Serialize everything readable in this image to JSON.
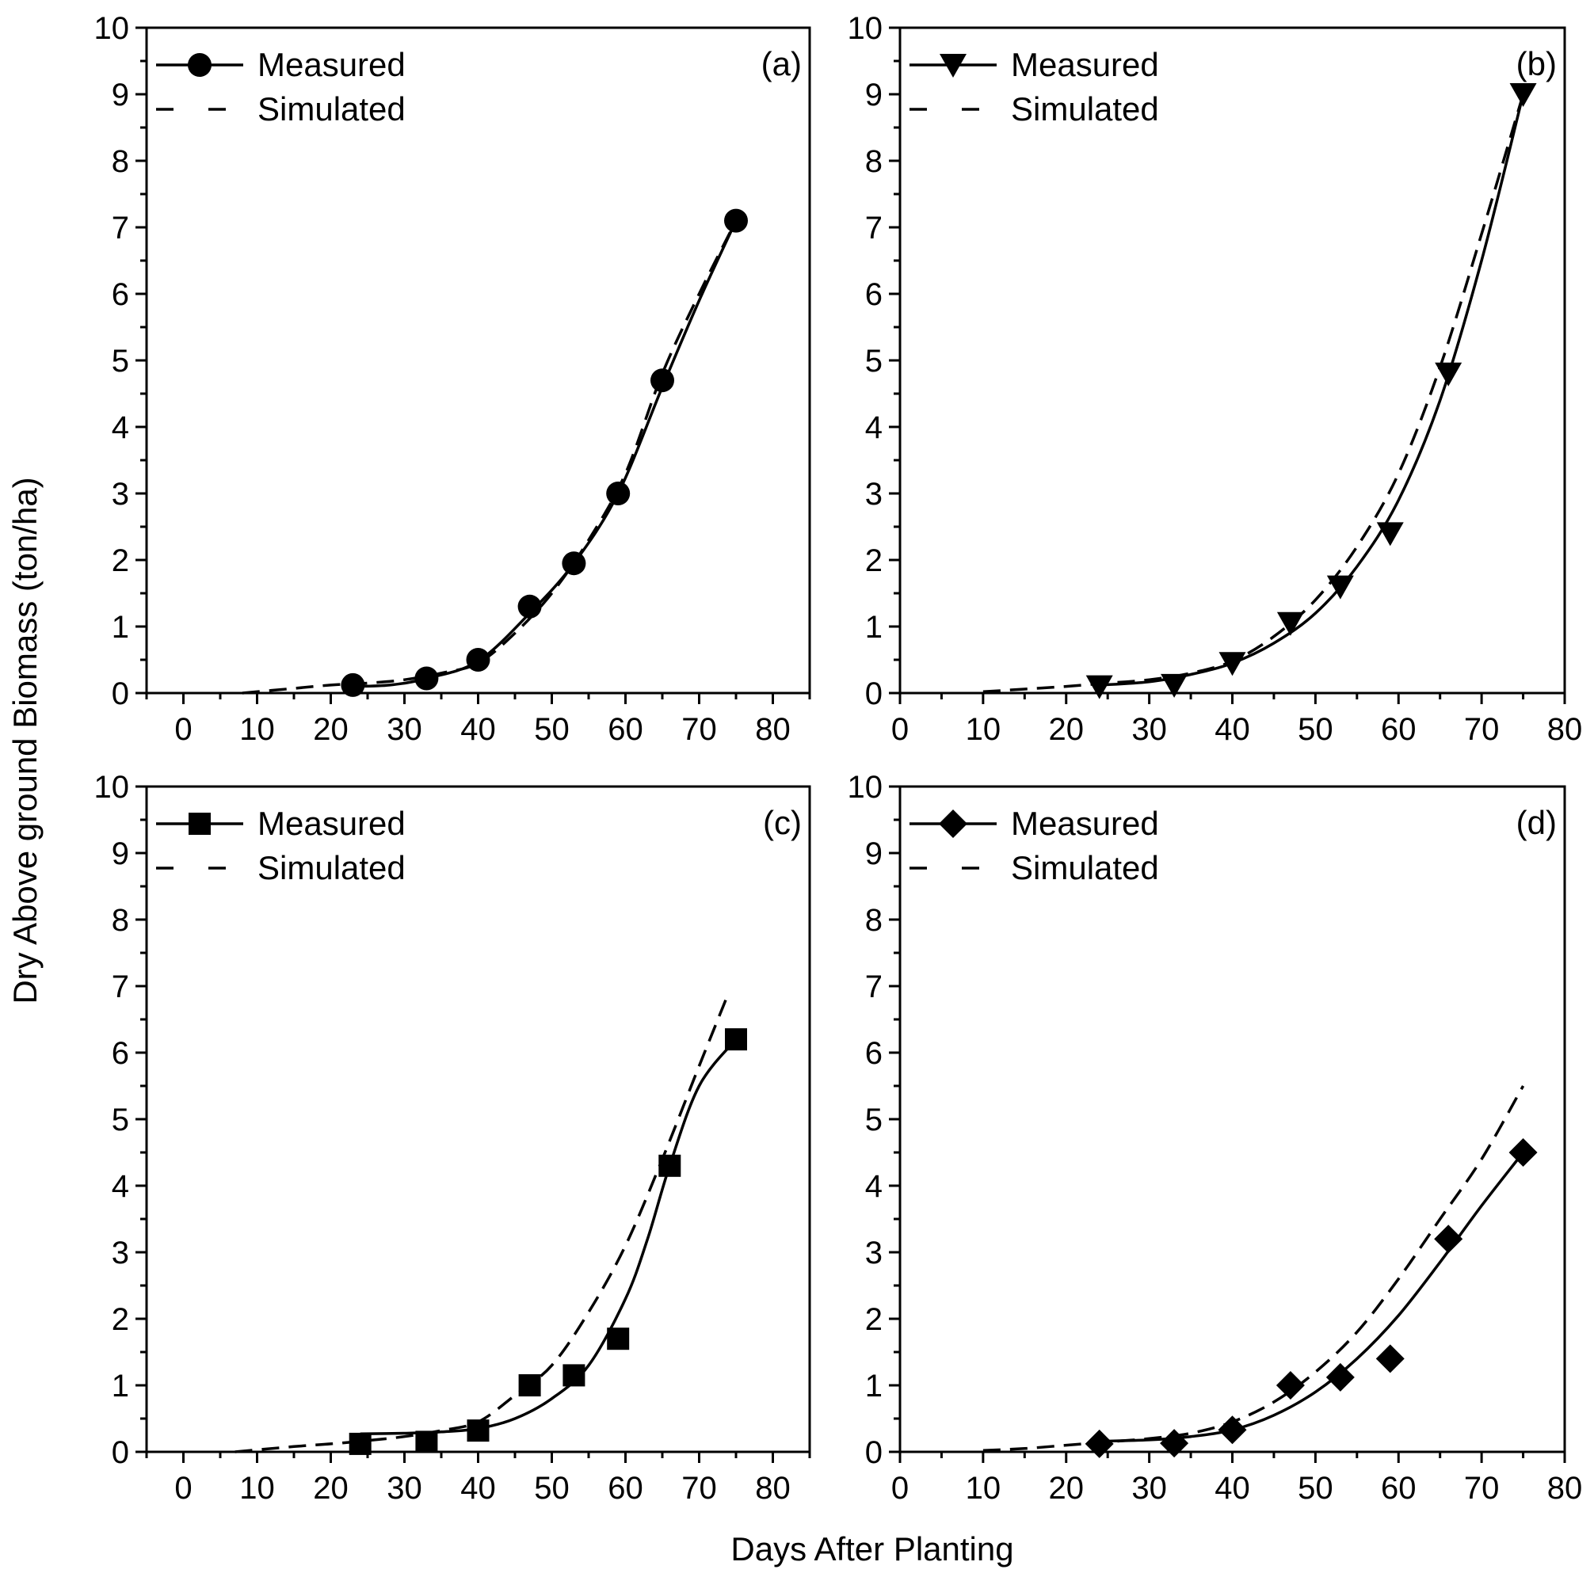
{
  "figure": {
    "xlabel": "Days After Planting",
    "ylabel": "Dry Above ground Biomass (ton/ha)"
  },
  "chart_data": [
    {
      "type": "line",
      "label": "(a)",
      "marker": "circle",
      "xlim": [
        -5,
        85
      ],
      "ylim": [
        0,
        10
      ],
      "x_ticks": [
        0,
        10,
        20,
        30,
        40,
        50,
        60,
        70,
        80
      ],
      "y_ticks": [
        0,
        1,
        2,
        3,
        4,
        5,
        6,
        7,
        8,
        9,
        10
      ],
      "legend": {
        "measured": "Measured",
        "simulated": "Simulated",
        "position": "top-left"
      },
      "measured": {
        "x": [
          23,
          33,
          40,
          47,
          53,
          59,
          65,
          75
        ],
        "y": [
          0.12,
          0.22,
          0.5,
          1.3,
          1.95,
          3.0,
          4.7,
          7.1
        ]
      },
      "measured_curve": {
        "x": [
          23,
          28,
          33,
          40,
          47,
          53,
          59,
          65,
          70,
          75
        ],
        "y": [
          0.1,
          0.12,
          0.22,
          0.48,
          1.2,
          1.95,
          3.0,
          4.6,
          5.9,
          7.1
        ]
      },
      "simulated": {
        "x": [
          8,
          15,
          20,
          25,
          30,
          35,
          40,
          45,
          50,
          55,
          60,
          65,
          70,
          75
        ],
        "y": [
          0.0,
          0.07,
          0.12,
          0.15,
          0.2,
          0.3,
          0.45,
          0.9,
          1.5,
          2.3,
          3.3,
          4.8,
          6.0,
          7.1
        ]
      }
    },
    {
      "type": "line",
      "label": "(b)",
      "marker": "triangle-down",
      "xlim": [
        0,
        80
      ],
      "ylim": [
        0,
        10
      ],
      "x_ticks": [
        0,
        10,
        20,
        30,
        40,
        50,
        60,
        70,
        80
      ],
      "y_ticks": [
        0,
        1,
        2,
        3,
        4,
        5,
        6,
        7,
        8,
        9,
        10
      ],
      "legend": {
        "measured": "Measured",
        "simulated": "Simulated",
        "position": "top-left"
      },
      "measured": {
        "x": [
          24,
          33,
          40,
          47,
          53,
          59,
          66,
          75
        ],
        "y": [
          0.1,
          0.12,
          0.45,
          1.05,
          1.6,
          2.4,
          4.8,
          9.0
        ]
      },
      "measured_curve": {
        "x": [
          24,
          30,
          35,
          40,
          45,
          50,
          55,
          60,
          65,
          70,
          75
        ],
        "y": [
          0.12,
          0.17,
          0.28,
          0.45,
          0.75,
          1.2,
          1.9,
          2.9,
          4.4,
          6.5,
          9.0
        ]
      },
      "simulated": {
        "x": [
          10,
          15,
          20,
          25,
          30,
          35,
          40,
          45,
          50,
          55,
          60,
          65,
          70,
          75
        ],
        "y": [
          0.02,
          0.06,
          0.1,
          0.15,
          0.2,
          0.3,
          0.48,
          0.85,
          1.4,
          2.2,
          3.3,
          4.9,
          6.9,
          9.0
        ]
      }
    },
    {
      "type": "line",
      "label": "(c)",
      "marker": "square",
      "xlim": [
        -5,
        85
      ],
      "ylim": [
        0,
        10
      ],
      "x_ticks": [
        0,
        10,
        20,
        30,
        40,
        50,
        60,
        70,
        80
      ],
      "y_ticks": [
        0,
        1,
        2,
        3,
        4,
        5,
        6,
        7,
        8,
        9,
        10
      ],
      "legend": {
        "measured": "Measured",
        "simulated": "Simulated",
        "position": "top-left"
      },
      "measured": {
        "x": [
          24,
          33,
          40,
          47,
          53,
          59,
          66,
          75
        ],
        "y": [
          0.12,
          0.15,
          0.32,
          1.0,
          1.15,
          1.7,
          4.3,
          6.2
        ]
      },
      "measured_curve": {
        "x": [
          24,
          30,
          35,
          40,
          45,
          50,
          55,
          60,
          63,
          66,
          70,
          75
        ],
        "y": [
          0.27,
          0.28,
          0.3,
          0.35,
          0.5,
          0.8,
          1.3,
          2.3,
          3.2,
          4.3,
          5.5,
          6.2
        ]
      },
      "simulated": {
        "x": [
          7,
          15,
          20,
          25,
          30,
          35,
          40,
          45,
          50,
          55,
          60,
          65,
          70,
          74
        ],
        "y": [
          0.0,
          0.08,
          0.12,
          0.17,
          0.23,
          0.32,
          0.45,
          0.85,
          1.3,
          2.1,
          3.1,
          4.4,
          5.8,
          6.9
        ]
      }
    },
    {
      "type": "line",
      "label": "(d)",
      "marker": "diamond",
      "xlim": [
        0,
        80
      ],
      "ylim": [
        0,
        10
      ],
      "x_ticks": [
        0,
        10,
        20,
        30,
        40,
        50,
        60,
        70,
        80
      ],
      "y_ticks": [
        0,
        1,
        2,
        3,
        4,
        5,
        6,
        7,
        8,
        9,
        10
      ],
      "legend": {
        "measured": "Measured",
        "simulated": "Simulated",
        "position": "top-left"
      },
      "measured": {
        "x": [
          24,
          33,
          40,
          47,
          53,
          59,
          66,
          75
        ],
        "y": [
          0.12,
          0.13,
          0.33,
          1.0,
          1.12,
          1.4,
          3.2,
          4.5
        ]
      },
      "measured_curve": {
        "x": [
          24,
          30,
          35,
          40,
          45,
          50,
          55,
          60,
          65,
          70,
          75
        ],
        "y": [
          0.16,
          0.18,
          0.23,
          0.33,
          0.55,
          0.9,
          1.4,
          2.05,
          2.85,
          3.7,
          4.5
        ]
      },
      "simulated": {
        "x": [
          10,
          15,
          20,
          25,
          30,
          35,
          40,
          45,
          50,
          55,
          60,
          65,
          70,
          75
        ],
        "y": [
          0.02,
          0.05,
          0.1,
          0.15,
          0.2,
          0.28,
          0.45,
          0.75,
          1.2,
          1.8,
          2.6,
          3.5,
          4.4,
          5.5
        ]
      }
    }
  ]
}
